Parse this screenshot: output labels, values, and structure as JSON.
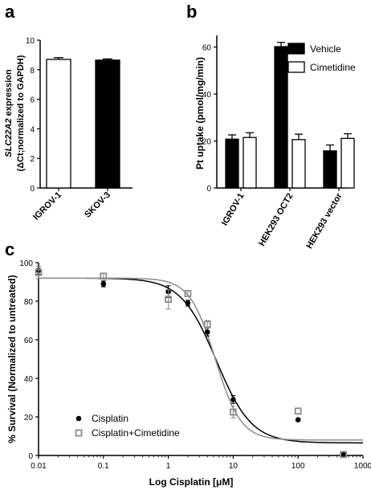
{
  "chart_data": [
    {
      "panel": "a",
      "type": "bar",
      "ylabel_italic": "SLC22A2",
      "ylabel_rest": " expression",
      "ylabel_line2": "(ΔCt;normalized to GAPDH)",
      "categories": [
        "IGROV-1",
        "SKOV-3"
      ],
      "values": [
        8.7,
        8.65
      ],
      "errors": [
        0.12,
        0.08
      ],
      "bar_fills": [
        "#ffffff",
        "#000000"
      ],
      "ylim": [
        0,
        10
      ],
      "yticks": [
        0,
        2,
        4,
        6,
        8,
        10
      ]
    },
    {
      "panel": "b",
      "type": "bar",
      "ylabel": "Pt uptake (pmol/mg/min)",
      "categories": [
        "IGROV-1",
        "HEK293 OCT2",
        "HEK293 vector"
      ],
      "series": [
        {
          "name": "Vehicle",
          "fill": "#000000",
          "values": [
            20.8,
            60.2,
            15.8
          ],
          "errors": [
            1.8,
            1.8,
            2.5
          ]
        },
        {
          "name": "Cimetidine",
          "fill": "#ffffff",
          "values": [
            21.5,
            20.6,
            21.1
          ],
          "errors": [
            2.0,
            2.3,
            2.0
          ]
        }
      ],
      "ylim": [
        0,
        65
      ],
      "yticks": [
        0,
        20,
        40,
        60
      ],
      "legend_position": "top-right"
    },
    {
      "panel": "c",
      "type": "scatter",
      "xlabel_prefix": "Log Cisplatin [",
      "xlabel_unit": "μM",
      "xlabel_suffix": "]",
      "ylabel": "% Survival (Normalized to untreated)",
      "xscale": "log",
      "xlim": [
        0.01,
        1000
      ],
      "ylim": [
        0,
        100
      ],
      "xtick_labels": [
        "0.01",
        "0.1",
        "1",
        "10",
        "100",
        "1000"
      ],
      "yticks": [
        0,
        20,
        40,
        60,
        80,
        100
      ],
      "legend_position": "bottom-left",
      "series": [
        {
          "name": "Cisplatin",
          "marker": "filled-circle",
          "color": "#000000",
          "points": [
            {
              "x": 0.01,
              "y": 96,
              "err": 2
            },
            {
              "x": 0.1,
              "y": 89,
              "err": 1.5
            },
            {
              "x": 1,
              "y": 85,
              "err": 3
            },
            {
              "x": 2,
              "y": 79,
              "err": 1.5
            },
            {
              "x": 4,
              "y": 64,
              "err": 2
            },
            {
              "x": 10,
              "y": 29,
              "err": 2
            },
            {
              "x": 100,
              "y": 18.5,
              "err": 0
            },
            {
              "x": 500,
              "y": 0.5,
              "err": 0
            }
          ],
          "fit": {
            "bottom": 6.5,
            "top": 92,
            "ec50": 5.5,
            "hill": 1.6
          }
        },
        {
          "name": "Cisplatin+Cimetidine",
          "marker": "open-square",
          "color": "#8c8c8c",
          "points": [
            {
              "x": 0.01,
              "y": 95,
              "err": 3
            },
            {
              "x": 0.1,
              "y": 93,
              "err": 1.5
            },
            {
              "x": 1,
              "y": 81,
              "err": 5
            },
            {
              "x": 2,
              "y": 84,
              "err": 1.5
            },
            {
              "x": 4,
              "y": 68,
              "err": 2
            },
            {
              "x": 10,
              "y": 22.5,
              "err": 3
            },
            {
              "x": 100,
              "y": 23,
              "err": 0
            },
            {
              "x": 500,
              "y": 0.5,
              "err": 0
            }
          ],
          "fit": {
            "bottom": 8,
            "top": 92,
            "ec50": 5.3,
            "hill": 2.2
          }
        }
      ]
    }
  ],
  "panel_labels": {
    "a": "a",
    "b": "b",
    "c": "c"
  }
}
